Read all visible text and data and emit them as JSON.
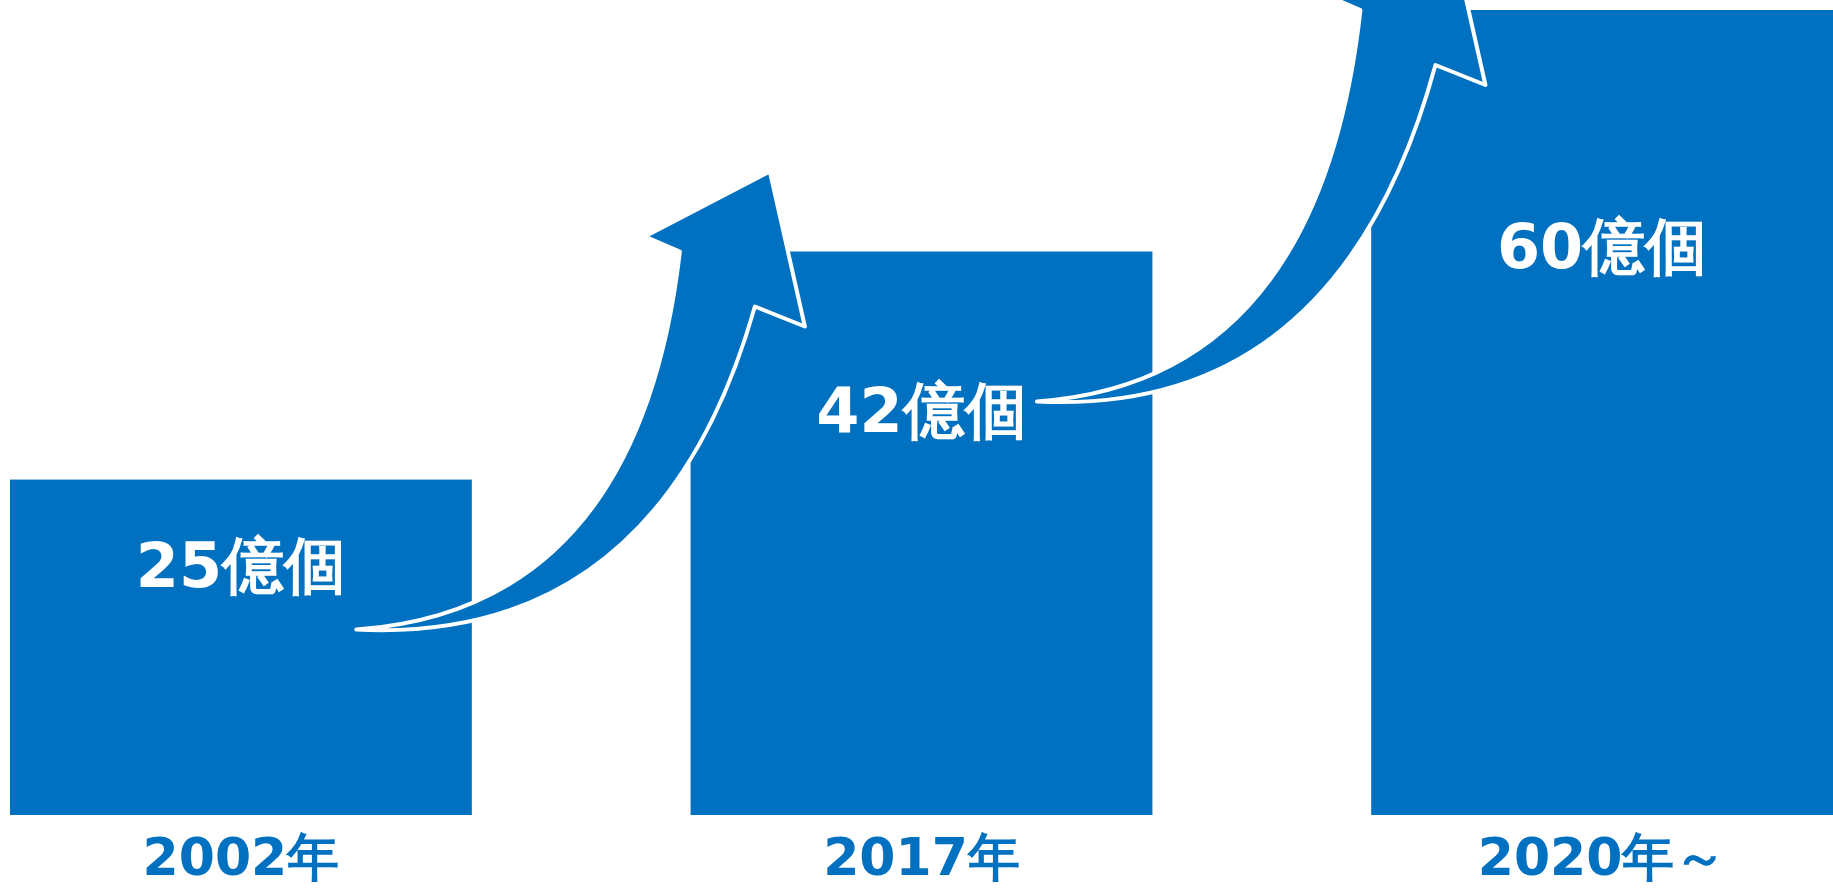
{
  "chart_data": {
    "type": "bar",
    "categories": [
      "2002年",
      "2017年",
      "2020年～"
    ],
    "values": [
      25,
      42,
      60
    ],
    "value_labels": [
      "25億個",
      "42億個",
      "60億個"
    ],
    "color": "#0070c0"
  }
}
